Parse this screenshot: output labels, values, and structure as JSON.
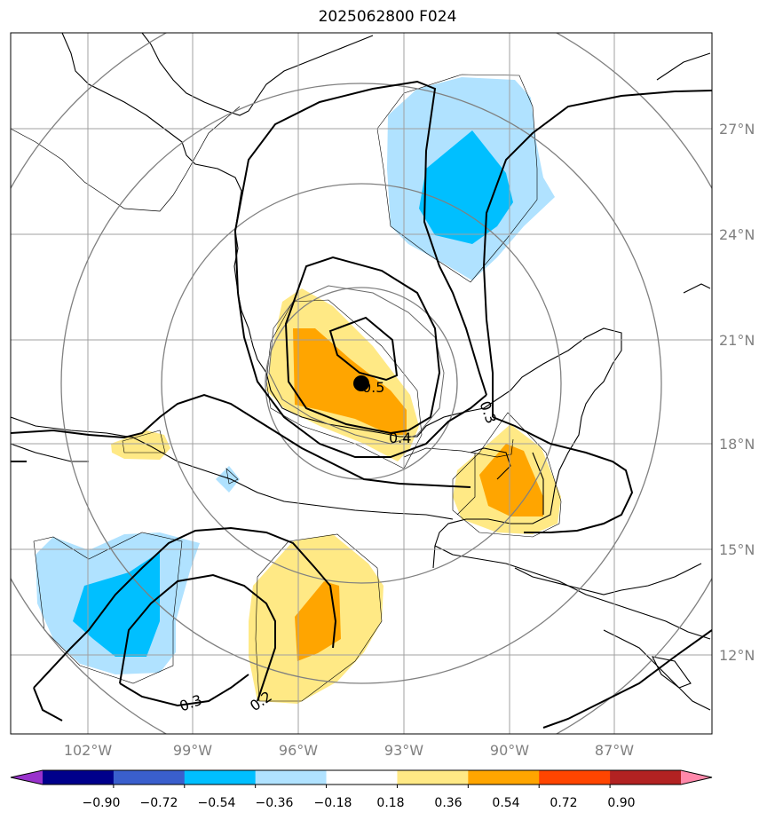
{
  "title": "2025062800 F024",
  "longitude_labels": [
    "102°W",
    "99°W",
    "96°W",
    "93°W",
    "90°W",
    "87°W"
  ],
  "latitude_labels": [
    "27°N",
    "24°N",
    "21°N",
    "18°N",
    "15°N",
    "12°N"
  ],
  "colorbar": {
    "ticks": [
      "−0.90",
      "−0.72",
      "−0.54",
      "−0.36",
      "−0.18",
      "0.18",
      "0.36",
      "0.54",
      "0.72",
      "0.90"
    ],
    "colors": [
      "#9932cc",
      "#00008b",
      "#3a5fcd",
      "#00bfff",
      "#b0e2ff",
      "#ffffff",
      "#ffe985",
      "#ffa500",
      "#ff4500",
      "#b22222",
      "#ff88aa"
    ]
  },
  "contour_labels": [
    "0.5",
    "0.4",
    "0.3",
    "0.3",
    "0.2"
  ],
  "storm_center": "black dot near 20°N 94°W",
  "range_rings": "concentric gray circles centered on storm"
}
